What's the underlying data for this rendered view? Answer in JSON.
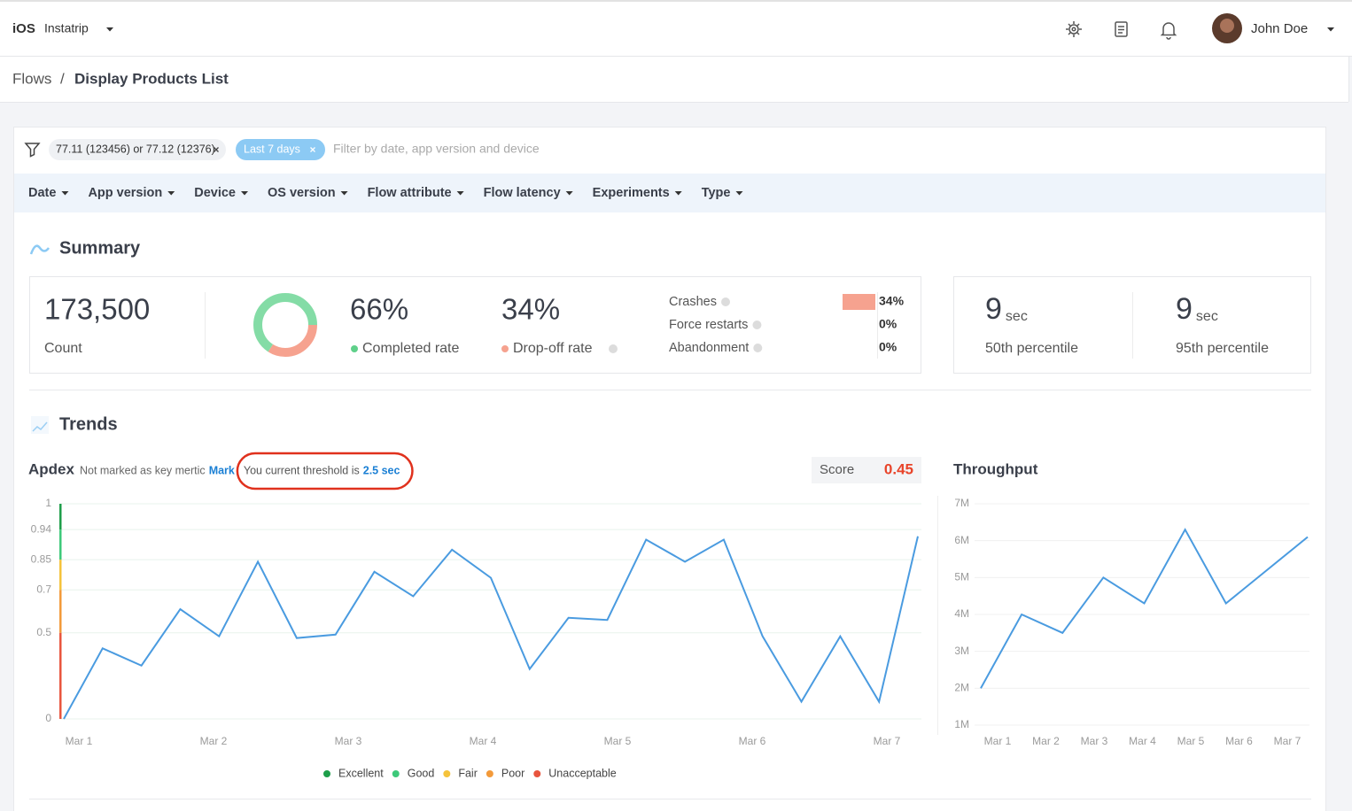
{
  "top_bar": {
    "platform": "iOS",
    "app": "Instatrip",
    "user": "John Doe"
  },
  "breadcrumb": {
    "parent": "Flows",
    "separator": "/",
    "current": "Display Products List"
  },
  "filters": {
    "chips": [
      "77.11 (123456) or 77.12 (12376)",
      "Last 7 days"
    ],
    "placeholder": "Filter by date, app version and device",
    "menus": [
      "Date",
      "App version",
      "Device",
      "OS version",
      "Flow attribute",
      "Flow latency",
      "Experiments",
      "Type"
    ]
  },
  "summary": {
    "title": "Summary",
    "count": {
      "value": "173,500",
      "label": "Count"
    },
    "completed": {
      "value": 66,
      "label": "66%",
      "name": "Completed rate"
    },
    "dropoff": {
      "value": 34,
      "label": "34%",
      "name": "Drop-off rate"
    },
    "breakdown": [
      {
        "name": "Crashes",
        "value": 34,
        "label": "34%"
      },
      {
        "name": "Force restarts",
        "value": 0,
        "label": "0%"
      },
      {
        "name": "Abandonment",
        "value": 0,
        "label": "0%"
      }
    ],
    "percentiles": [
      {
        "value": "9",
        "unit": "sec",
        "label": "50th percentile"
      },
      {
        "value": "9",
        "unit": "sec",
        "label": "95th percentile"
      }
    ]
  },
  "trends": {
    "title": "Trends"
  },
  "chart_data": [
    {
      "type": "line",
      "title": "Apdex",
      "note": "Not marked as key mertic",
      "action": "Mark",
      "threshold_text": "You current threshold is",
      "threshold": "2.5 sec",
      "score_label": "Score",
      "score": 0.45,
      "x_labels": [
        "Mar 1",
        "Mar 2",
        "Mar 3",
        "Mar 4",
        "Mar 5",
        "Mar 6",
        "Mar 7"
      ],
      "values": [
        0,
        0.41,
        0.31,
        0.61,
        0.48,
        0.84,
        0.47,
        0.49,
        0.79,
        0.67,
        0.88,
        0.76,
        0.29,
        0.57,
        0.56,
        0.91,
        0.84,
        0.91,
        0.48,
        0.1,
        0.48,
        0.1,
        0.92
      ],
      "color": "#4a9be0",
      "ylim": [
        0,
        1
      ],
      "yticks": [
        0,
        0.5,
        0.7,
        0.85,
        0.94,
        1
      ],
      "grid": true,
      "bands": [
        {
          "name": "Excellent",
          "color": "#1e9e4a"
        },
        {
          "name": "Good",
          "color": "#3ec97a"
        },
        {
          "name": "Fair",
          "color": "#f5c33b"
        },
        {
          "name": "Poor",
          "color": "#f39a3a"
        },
        {
          "name": "Unacceptable",
          "color": "#e8553e"
        }
      ]
    },
    {
      "type": "line",
      "title": "Throughput",
      "x_labels": [
        "Mar 1",
        "Mar 2",
        "Mar 3",
        "Mar 4",
        "Mar 5",
        "Mar 6",
        "Mar 7"
      ],
      "values": [
        2000000,
        4000000,
        3500000,
        5000000,
        4300000,
        6300000,
        4300000,
        5200000,
        6100000
      ],
      "color": "#4a9be0",
      "ylim": [
        1000000,
        7000000
      ],
      "yticks": [
        {
          "value": 1000000,
          "label": "1M"
        },
        {
          "value": 2000000,
          "label": "2M"
        },
        {
          "value": 3000000,
          "label": "3M"
        },
        {
          "value": 4000000,
          "label": "4M"
        },
        {
          "value": 5000000,
          "label": "5M"
        },
        {
          "value": 6000000,
          "label": "6M"
        },
        {
          "value": 7000000,
          "label": "7M"
        }
      ],
      "grid": true
    }
  ]
}
